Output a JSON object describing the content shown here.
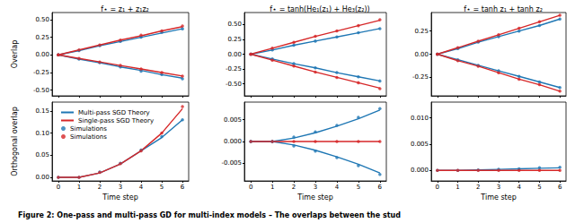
{
  "caption": "Figure 2: One-pass and multi-pass GD for multi-index models – The overlaps between the stud",
  "chart_data": [
    {
      "type": "line",
      "title": "f⋆ = z₁ + z₁z₂",
      "ylabel": "Overlap",
      "tick_labels": "y",
      "grid": false,
      "x": [
        0,
        1,
        2,
        3,
        4,
        5,
        6
      ],
      "xlim": [
        -0.3,
        6.3
      ],
      "xticks": [
        0,
        1,
        2,
        3,
        4,
        5,
        6
      ],
      "ylim": [
        -0.58,
        0.6
      ],
      "yticks": [
        {
          "value": -0.5,
          "label": "-0.50"
        },
        -0.25,
        {
          "value": 0,
          "label": "0.00"
        },
        0.25,
        {
          "value": 0.5,
          "label": "0.50"
        }
      ],
      "series": [
        {
          "name": "Multi-pass SGD Theory",
          "type": "line",
          "color": "#1f77b4",
          "values": [
            0,
            0.06,
            0.13,
            0.19,
            0.25,
            0.31,
            0.37
          ]
        },
        {
          "name": "Multi-pass SGD Theory",
          "type": "line",
          "color": "#1f77b4",
          "values": [
            0,
            -0.06,
            -0.11,
            -0.17,
            -0.22,
            -0.28,
            -0.33
          ]
        },
        {
          "name": "Single-pass SGD Theory",
          "type": "line",
          "color": "#d62728",
          "values": [
            0,
            0.07,
            0.14,
            0.21,
            0.27,
            0.34,
            0.4
          ]
        },
        {
          "name": "Single-pass SGD Theory",
          "type": "line",
          "color": "#d62728",
          "values": [
            0,
            -0.05,
            -0.1,
            -0.15,
            -0.2,
            -0.25,
            -0.3
          ]
        },
        {
          "name": "Simulations",
          "type": "scatter",
          "marker": "circle",
          "color": "#1f77b4",
          "values": [
            0,
            0.06,
            0.13,
            0.19,
            0.25,
            0.32,
            0.37
          ]
        },
        {
          "name": "Simulations",
          "type": "scatter",
          "marker": "circle",
          "color": "#1f77b4",
          "values": [
            0,
            -0.06,
            -0.11,
            -0.17,
            -0.23,
            -0.28,
            -0.34
          ]
        },
        {
          "name": "Simulations",
          "type": "scatter",
          "marker": "circle",
          "color": "#d62728",
          "values": [
            0,
            0.07,
            0.14,
            0.21,
            0.28,
            0.34,
            0.41
          ]
        },
        {
          "name": "Simulations",
          "type": "scatter",
          "marker": "circle",
          "color": "#d62728",
          "values": [
            0,
            -0.05,
            -0.1,
            -0.15,
            -0.2,
            -0.25,
            -0.3
          ]
        }
      ]
    },
    {
      "type": "line",
      "title": "f⋆ = tanh(He₁(z₁) + He₃(z₂))",
      "tick_labels": "y",
      "grid": false,
      "x": [
        0,
        1,
        2,
        3,
        4,
        5,
        6
      ],
      "xlim": [
        -0.3,
        6.3
      ],
      "xticks": [
        0,
        1,
        2,
        3,
        4,
        5,
        6
      ],
      "ylim": [
        -0.7,
        0.7
      ],
      "yticks": [
        {
          "value": -0.5,
          "label": "-0.50"
        },
        -0.25,
        {
          "value": 0,
          "label": "0.00"
        },
        0.25,
        {
          "value": 0.5,
          "label": "0.50"
        }
      ],
      "series": [
        {
          "name": "Multi-pass SGD Theory",
          "type": "line",
          "color": "#1f77b4",
          "values": [
            0,
            0.07,
            0.15,
            0.22,
            0.29,
            0.36,
            0.43
          ]
        },
        {
          "name": "Multi-pass SGD Theory",
          "type": "line",
          "color": "#1f77b4",
          "values": [
            0,
            -0.08,
            -0.16,
            -0.23,
            -0.31,
            -0.38,
            -0.45
          ]
        },
        {
          "name": "Single-pass SGD Theory",
          "type": "line",
          "color": "#d62728",
          "values": [
            0,
            0.1,
            0.2,
            0.3,
            0.39,
            0.48,
            0.57
          ]
        },
        {
          "name": "Single-pass SGD Theory",
          "type": "line",
          "color": "#d62728",
          "values": [
            0,
            -0.1,
            -0.2,
            -0.3,
            -0.39,
            -0.48,
            -0.57
          ]
        },
        {
          "name": "Simulations",
          "type": "scatter",
          "marker": "circle",
          "color": "#1f77b4",
          "values": [
            0,
            0.07,
            0.15,
            0.22,
            0.29,
            0.36,
            0.43
          ]
        },
        {
          "name": "Simulations",
          "type": "scatter",
          "marker": "circle",
          "color": "#1f77b4",
          "values": [
            0,
            -0.08,
            -0.16,
            -0.23,
            -0.31,
            -0.38,
            -0.45
          ]
        },
        {
          "name": "Simulations",
          "type": "scatter",
          "marker": "circle",
          "color": "#d62728",
          "values": [
            0,
            0.1,
            0.2,
            0.3,
            0.39,
            0.48,
            0.58
          ]
        },
        {
          "name": "Simulations",
          "type": "scatter",
          "marker": "circle",
          "color": "#d62728",
          "values": [
            0,
            -0.1,
            -0.2,
            -0.3,
            -0.39,
            -0.48,
            -0.58
          ]
        }
      ]
    },
    {
      "type": "line",
      "title": "f⋆ = tanh z₁ + tanh z₂",
      "tick_labels": "y",
      "grid": false,
      "x": [
        0,
        1,
        2,
        3,
        4,
        5,
        6
      ],
      "xlim": [
        -0.3,
        6.3
      ],
      "xticks": [
        0,
        1,
        2,
        3,
        4,
        5,
        6
      ],
      "ylim": [
        -0.45,
        0.45
      ],
      "yticks": [
        -0.25,
        {
          "value": 0,
          "label": "0.00"
        },
        0.25
      ],
      "series": [
        {
          "name": "Multi-pass SGD Theory",
          "type": "line",
          "color": "#1f77b4",
          "values": [
            0,
            0.06,
            0.13,
            0.19,
            0.25,
            0.31,
            0.38
          ]
        },
        {
          "name": "Multi-pass SGD Theory",
          "type": "line",
          "color": "#1f77b4",
          "values": [
            0,
            -0.06,
            -0.12,
            -0.18,
            -0.24,
            -0.3,
            -0.36
          ]
        },
        {
          "name": "Single-pass SGD Theory",
          "type": "line",
          "color": "#d62728",
          "values": [
            0,
            0.07,
            0.14,
            0.21,
            0.28,
            0.35,
            0.42
          ]
        },
        {
          "name": "Single-pass SGD Theory",
          "type": "line",
          "color": "#d62728",
          "values": [
            0,
            -0.07,
            -0.13,
            -0.2,
            -0.27,
            -0.33,
            -0.4
          ]
        },
        {
          "name": "Simulations",
          "type": "scatter",
          "marker": "circle",
          "color": "#1f77b4",
          "values": [
            0,
            0.06,
            0.13,
            0.19,
            0.25,
            0.31,
            0.38
          ]
        },
        {
          "name": "Simulations",
          "type": "scatter",
          "marker": "circle",
          "color": "#1f77b4",
          "values": [
            0,
            -0.06,
            -0.12,
            -0.18,
            -0.24,
            -0.3,
            -0.36
          ]
        },
        {
          "name": "Simulations",
          "type": "scatter",
          "marker": "circle",
          "color": "#d62728",
          "values": [
            0,
            0.07,
            0.14,
            0.21,
            0.28,
            0.35,
            0.42
          ]
        },
        {
          "name": "Simulations",
          "type": "scatter",
          "marker": "circle",
          "color": "#d62728",
          "values": [
            0,
            -0.07,
            -0.13,
            -0.2,
            -0.27,
            -0.33,
            -0.4
          ]
        }
      ]
    },
    {
      "type": "line",
      "ylabel": "Orthogonal overlap",
      "xlabel": "Time step",
      "grid": false,
      "legend": "upper left",
      "x": [
        0,
        1,
        2,
        3,
        4,
        5,
        6
      ],
      "xlim": [
        -0.3,
        6.3
      ],
      "xticks": [
        0,
        1,
        2,
        3,
        4,
        5,
        6
      ],
      "ylim": [
        -0.008,
        0.17
      ],
      "yticks": [
        {
          "value": 0,
          "label": "0.00"
        },
        0.05,
        {
          "value": 0.1,
          "label": "0.10"
        },
        0.15
      ],
      "series": [
        {
          "name": "Multi-pass SGD Theory",
          "type": "line",
          "color": "#1f77b4",
          "values": [
            0,
            0,
            0.01,
            0.03,
            0.06,
            0.09,
            0.13
          ]
        },
        {
          "name": "Single-pass SGD Theory",
          "type": "line",
          "color": "#d62728",
          "values": [
            0,
            0,
            0.01,
            0.03,
            0.06,
            0.1,
            0.155
          ]
        },
        {
          "name": "Simulations",
          "type": "scatter",
          "marker": "circle",
          "color": "#1f77b4",
          "values": [
            0,
            0,
            0.012,
            0.032,
            0.062,
            0.092,
            0.13
          ]
        },
        {
          "name": "Simulations",
          "type": "scatter",
          "marker": "circle",
          "color": "#d62728",
          "values": [
            0,
            0,
            0.011,
            0.031,
            0.06,
            0.1,
            0.16
          ]
        }
      ]
    },
    {
      "type": "line",
      "xlabel": "Time step",
      "grid": false,
      "x": [
        0,
        1,
        2,
        3,
        4,
        5,
        6
      ],
      "xlim": [
        -0.3,
        6.3
      ],
      "xticks": [
        0,
        1,
        2,
        3,
        4,
        5,
        6
      ],
      "ylim": [
        -0.009,
        0.009
      ],
      "yticks": [
        -0.005,
        {
          "value": 0,
          "label": "0.000"
        },
        0.005
      ],
      "series": [
        {
          "name": "Multi-pass SGD Theory",
          "type": "line",
          "color": "#1f77b4",
          "values": [
            0,
            0,
            0.0008,
            0.002,
            0.0035,
            0.0052,
            0.0072
          ]
        },
        {
          "name": "Multi-pass SGD Theory",
          "type": "line",
          "color": "#1f77b4",
          "values": [
            0,
            0,
            -0.0008,
            -0.002,
            -0.0035,
            -0.0052,
            -0.0072
          ]
        },
        {
          "name": "Single-pass SGD Theory",
          "type": "line",
          "color": "#d62728",
          "values": [
            0,
            0,
            0,
            0,
            0,
            0,
            0
          ]
        },
        {
          "name": "Simulations",
          "type": "scatter",
          "marker": "circle",
          "color": "#1f77b4",
          "values": [
            0,
            0,
            0.001,
            0.0022,
            0.0037,
            0.0055,
            0.0075
          ]
        },
        {
          "name": "Simulations",
          "type": "scatter",
          "marker": "circle",
          "color": "#1f77b4",
          "values": [
            0,
            0,
            -0.001,
            -0.0022,
            -0.0037,
            -0.0055,
            -0.0075
          ]
        },
        {
          "name": "Simulations",
          "type": "scatter",
          "marker": "circle",
          "color": "#d62728",
          "values": [
            0,
            0,
            0,
            0,
            0,
            0,
            0
          ]
        }
      ]
    },
    {
      "type": "line",
      "xlabel": "Time step",
      "grid": false,
      "x": [
        0,
        1,
        2,
        3,
        4,
        5,
        6
      ],
      "xlim": [
        -0.3,
        6.3
      ],
      "xticks": [
        0,
        1,
        2,
        3,
        4,
        5,
        6
      ],
      "ylim": [
        -0.002,
        0.013
      ],
      "yticks": [
        {
          "value": 0,
          "label": "0.000"
        },
        0.005,
        {
          "value": 0.01,
          "label": "0.010"
        }
      ],
      "series": [
        {
          "name": "Multi-pass SGD Theory",
          "type": "line",
          "color": "#1f77b4",
          "values": [
            0,
            0,
            0.0001,
            0.0002,
            0.0003,
            0.0004,
            0.0005
          ]
        },
        {
          "name": "Single-pass SGD Theory",
          "type": "line",
          "color": "#d62728",
          "values": [
            0,
            0,
            0,
            0,
            0,
            0,
            0
          ]
        },
        {
          "name": "Simulations",
          "type": "scatter",
          "marker": "circle",
          "color": "#1f77b4",
          "values": [
            0,
            0,
            0.0001,
            0.0002,
            0.0003,
            0.0005,
            0.0006
          ]
        },
        {
          "name": "Simulations",
          "type": "scatter",
          "marker": "circle",
          "color": "#d62728",
          "values": [
            0,
            0,
            0,
            0,
            0,
            0,
            0
          ]
        }
      ]
    }
  ]
}
